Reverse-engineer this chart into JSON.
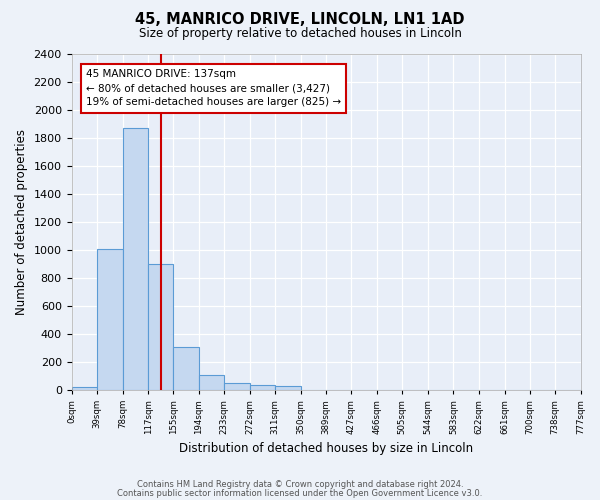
{
  "title_line1": "45, MANRICO DRIVE, LINCOLN, LN1 1AD",
  "title_line2": "Size of property relative to detached houses in Lincoln",
  "xlabel": "Distribution of detached houses by size in Lincoln",
  "ylabel": "Number of detached properties",
  "bin_labels": [
    "0sqm",
    "39sqm",
    "78sqm",
    "117sqm",
    "155sqm",
    "194sqm",
    "233sqm",
    "272sqm",
    "311sqm",
    "350sqm",
    "389sqm",
    "427sqm",
    "466sqm",
    "505sqm",
    "544sqm",
    "583sqm",
    "622sqm",
    "661sqm",
    "700sqm",
    "738sqm",
    "777sqm"
  ],
  "bar_heights": [
    20,
    1005,
    1870,
    900,
    305,
    105,
    50,
    35,
    25,
    0,
    0,
    0,
    0,
    0,
    0,
    0,
    0,
    0,
    0,
    0,
    0
  ],
  "bin_edges": [
    0,
    39,
    78,
    117,
    155,
    194,
    233,
    272,
    311,
    350,
    389,
    427,
    466,
    505,
    544,
    583,
    622,
    661,
    700,
    738,
    777
  ],
  "bar_color": "#c5d8f0",
  "bar_edge_color": "#5b9bd5",
  "property_line_x": 137,
  "property_line_color": "#cc0000",
  "annotation_text": "45 MANRICO DRIVE: 137sqm\n← 80% of detached houses are smaller (3,427)\n19% of semi-detached houses are larger (825) →",
  "annotation_box_color": "#ffffff",
  "annotation_box_edge_color": "#cc0000",
  "ylim": [
    0,
    2400
  ],
  "xlim_max": 777,
  "background_color": "#e8eef8",
  "grid_color": "#ffffff",
  "yticks": [
    0,
    200,
    400,
    600,
    800,
    1000,
    1200,
    1400,
    1600,
    1800,
    2000,
    2200,
    2400
  ],
  "footer_line1": "Contains HM Land Registry data © Crown copyright and database right 2024.",
  "footer_line2": "Contains public sector information licensed under the Open Government Licence v3.0."
}
